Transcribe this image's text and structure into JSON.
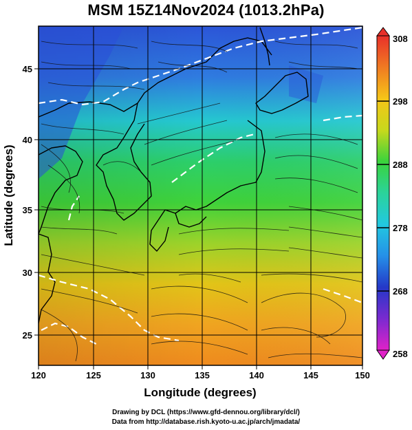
{
  "title": "MSM 15Z14Nov2024 (1013.2hPa)",
  "xaxis": {
    "label": "Longitude (degrees)",
    "ticks": [
      "120",
      "125",
      "130",
      "135",
      "140",
      "145",
      "150"
    ]
  },
  "yaxis": {
    "label": "Latitude  (degrees)",
    "ticks": [
      "25",
      "30",
      "35",
      "40",
      "45"
    ]
  },
  "colorbar": {
    "ticks": [
      "308",
      "298",
      "288",
      "278",
      "268",
      "258"
    ],
    "range": [
      258,
      308
    ]
  },
  "credits": {
    "line1": "Drawing by DCL (https://www.gfd-dennou.org/library/dcl/)",
    "line2": "Data from http://database.rish.kyoto-u.ac.jp/arch/jmadata/"
  },
  "colors": {
    "cold": "#1a3fd0",
    "mid": "#2fd25a",
    "warm": "#f0a020",
    "hot": "#e04020"
  }
}
